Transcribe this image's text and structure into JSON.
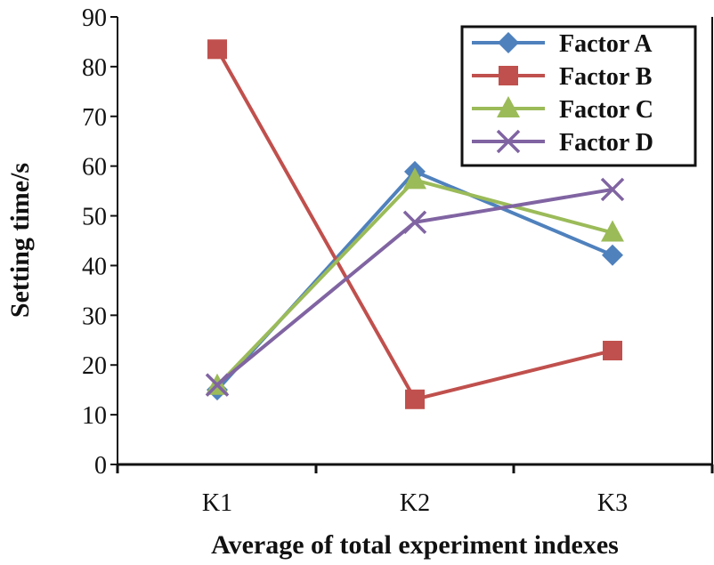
{
  "chart_data": {
    "type": "line",
    "title": "",
    "xlabel": "Average of total experiment indexes",
    "ylabel": "Setting time/s",
    "categories": [
      "K1",
      "K2",
      "K3"
    ],
    "ylim": [
      0,
      90
    ],
    "yticks": [
      "0",
      "10",
      "20",
      "30",
      "40",
      "50",
      "60",
      "70",
      "80",
      "90"
    ],
    "grid": false,
    "legend": "top-right",
    "series": [
      {
        "name": "Factor A",
        "values": [
          15.0,
          58.9,
          42.1
        ],
        "color": "#4F81BD",
        "marker": "diamond"
      },
      {
        "name": "Factor B",
        "values": [
          83.5,
          13.1,
          22.9
        ],
        "color": "#C0504D",
        "marker": "square"
      },
      {
        "name": "Factor C",
        "values": [
          15.8,
          57.2,
          46.6
        ],
        "color": "#9BBB59",
        "marker": "triangle"
      },
      {
        "name": "Factor D",
        "values": [
          16.0,
          48.7,
          55.3
        ],
        "color": "#8064A2",
        "marker": "x"
      }
    ]
  }
}
